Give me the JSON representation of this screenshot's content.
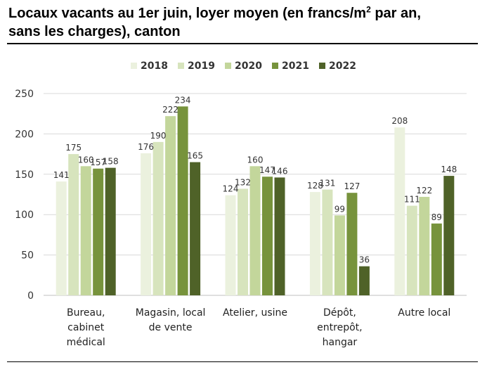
{
  "title_line1": "Locaux vacants au 1er juin, loyer moyen (en francs/m",
  "title_sup": "2",
  "title_line1_end": " par an,",
  "title_line2": "sans les charges), canton",
  "chart_data": {
    "type": "bar",
    "categories": [
      [
        "Bureau,",
        "cabinet",
        "médical"
      ],
      [
        "Magasin, local",
        "de vente"
      ],
      [
        "Atelier, usine"
      ],
      [
        "Dépôt,",
        "entrepôt,",
        "hangar"
      ],
      [
        "Autre local"
      ]
    ],
    "series": [
      {
        "name": "2018",
        "color": "#ebf1de",
        "values": [
          141,
          176,
          124,
          128,
          208
        ]
      },
      {
        "name": "2019",
        "color": "#d7e4bd",
        "values": [
          175,
          190,
          132,
          131,
          111
        ]
      },
      {
        "name": "2020",
        "color": "#c3d69b",
        "values": [
          160,
          222,
          160,
          99,
          122
        ]
      },
      {
        "name": "2021",
        "color": "#77933c",
        "values": [
          157,
          234,
          147,
          127,
          89
        ]
      },
      {
        "name": "2022",
        "color": "#4f6228",
        "values": [
          158,
          165,
          146,
          36,
          148
        ]
      }
    ],
    "ylim": [
      0,
      250
    ],
    "yticks": [
      0,
      50,
      100,
      150,
      200,
      250
    ],
    "grid": true,
    "legend_position": "top"
  }
}
